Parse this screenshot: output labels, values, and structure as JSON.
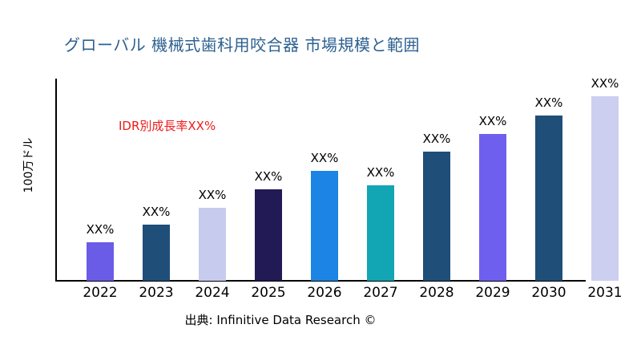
{
  "colors": {
    "title": "#2E6191",
    "annotation": "#ED1C1C",
    "axis": "#000000"
  },
  "footer": {
    "source": "出典: Infinitive Data Research ©"
  },
  "chart_data": {
    "type": "bar",
    "title": "グローバル 機械式歯科用咬合器 市場規模と範囲",
    "annotation": "IDR別成長率XX%",
    "xlabel": "",
    "ylabel": "100万ドル",
    "categories": [
      "2022",
      "2023",
      "2024",
      "2025",
      "2026",
      "2027",
      "2028",
      "2029",
      "2030",
      "2031"
    ],
    "values": [
      48,
      70,
      91,
      114,
      137,
      119,
      161,
      183,
      206,
      230
    ],
    "value_labels": [
      "XX%",
      "XX%",
      "XX%",
      "XX%",
      "XX%",
      "XX%",
      "XX%",
      "XX%",
      "XX%",
      "XX%"
    ],
    "bar_colors": [
      "#6B5CE7",
      "#1F4E79",
      "#C7CBEE",
      "#221A54",
      "#1B84E4",
      "#12A5B4",
      "#1F4E79",
      "#6F5FEF",
      "#1F4E79",
      "#CCCFF0"
    ],
    "ylim": [
      0,
      252
    ],
    "grid": false,
    "legend": "none"
  }
}
